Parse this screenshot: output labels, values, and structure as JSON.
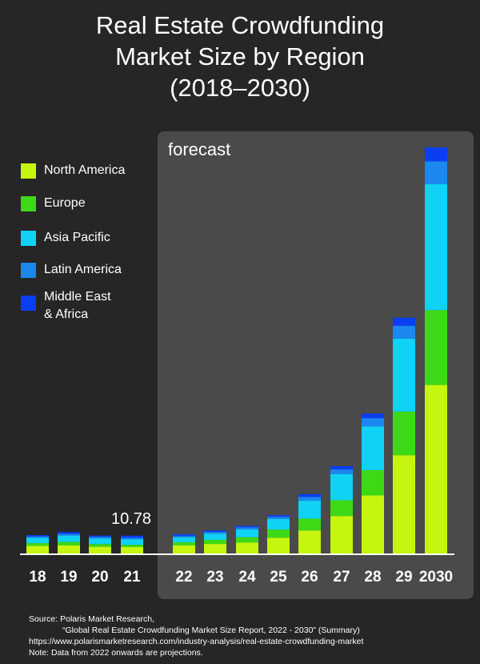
{
  "title_lines": [
    "Real Estate Crowdfunding",
    "Market Size by Region",
    "(2018–2030)"
  ],
  "forecast_label": "forecast",
  "legend": [
    {
      "label": "North America",
      "color": "#c6f60f"
    },
    {
      "label": "Europe",
      "color": "#3ed916"
    },
    {
      "label": "Asia Pacific",
      "color": "#10d2f5"
    },
    {
      "label": "Latin America",
      "color": "#1a88ee"
    },
    {
      "label": "Middle East\n& Africa",
      "color": "#0a3ef2"
    }
  ],
  "source_lines": [
    "Source: Polaris Market Research,",
    "“Global Real Estate Crowdfunding Market Size Report, 2022 - 2030” (Summary)",
    "https://www.polarismarketresearch.com/industry-analysis/real-estate-crowdfunding-market",
    "Note: Data from 2022 onwards are projections."
  ],
  "chart_data": {
    "type": "bar",
    "stacked": true,
    "categories": [
      "18",
      "19",
      "20",
      "21",
      "22",
      "23",
      "24",
      "25",
      "26",
      "27",
      "28",
      "29",
      "2030"
    ],
    "series": [
      {
        "name": "North America",
        "color": "#c6f60f",
        "values": [
          4.6,
          4.9,
          4.1,
          3.9,
          4.9,
          5.8,
          6.6,
          9.6,
          14.0,
          22.8,
          35.3,
          59.8,
          102.5
        ]
      },
      {
        "name": "Europe",
        "color": "#3ed916",
        "values": [
          1.7,
          2.1,
          1.6,
          1.4,
          1.9,
          2.5,
          3.3,
          4.9,
          7.2,
          9.6,
          15.4,
          26.5,
          45.5
        ]
      },
      {
        "name": "Asia Pacific",
        "color": "#10d2f5",
        "values": [
          3.3,
          3.9,
          3.5,
          3.4,
          3.0,
          3.8,
          4.7,
          6.5,
          10.9,
          15.9,
          26.6,
          44.3,
          76.6
        ]
      },
      {
        "name": "Latin America",
        "color": "#1a88ee",
        "values": [
          0.8,
          1.0,
          0.9,
          0.8,
          0.9,
          1.0,
          1.3,
          1.3,
          2.3,
          2.8,
          5.0,
          7.9,
          13.9
        ]
      },
      {
        "name": "Middle East\n& Africa",
        "color": "#0a3ef2",
        "values": [
          0.8,
          1.1,
          0.8,
          1.3,
          1.0,
          0.9,
          0.9,
          1.0,
          1.7,
          2.0,
          2.8,
          4.9,
          8.5
        ]
      }
    ],
    "annotation": {
      "category": "21",
      "text": "10.78"
    },
    "forecast_from": "22",
    "ylim": [
      0,
      250
    ],
    "xlabel": "",
    "ylabel": ""
  }
}
